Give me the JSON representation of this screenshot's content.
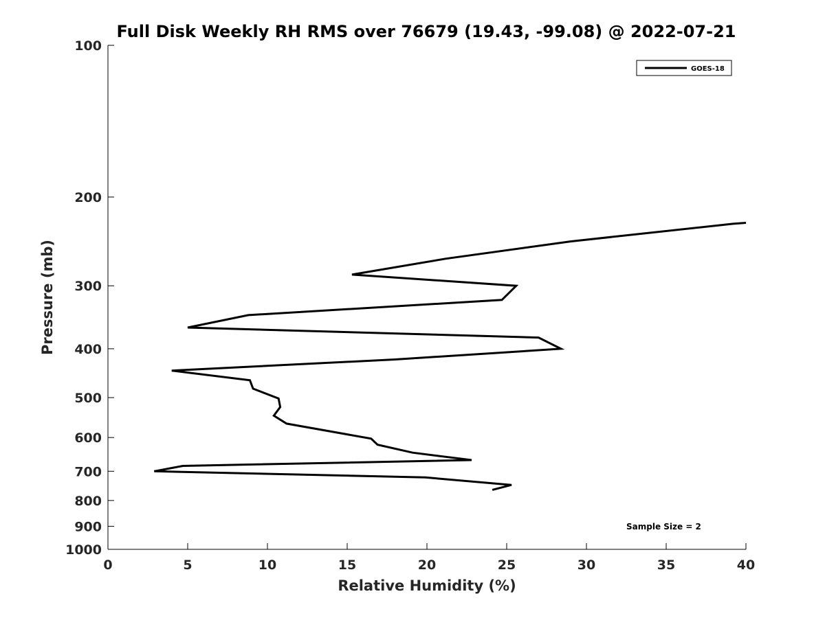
{
  "chart_data": {
    "type": "line",
    "title": "Full Disk Weekly RH RMS over 76679 (19.43, -99.08) @ 2022-07-21",
    "xlabel": "Relative Humidity (%)",
    "ylabel": "Pressure (mb)",
    "xlim": [
      0,
      40
    ],
    "ylim": [
      100,
      1000
    ],
    "yscale": "log",
    "yreversed": true,
    "grid": false,
    "legend_position": "top-right",
    "x_ticks": [
      0,
      5,
      10,
      15,
      20,
      25,
      30,
      35,
      40
    ],
    "y_ticks": [
      100,
      200,
      300,
      400,
      500,
      600,
      700,
      800,
      900,
      1000
    ],
    "annotation": "Sample Size = 2",
    "series": [
      {
        "name": "GOES-18",
        "color": "#000000",
        "points": [
          {
            "rh": 40.0,
            "p": 225
          },
          {
            "rh": 39.2,
            "p": 226
          },
          {
            "rh": 29.0,
            "p": 245
          },
          {
            "rh": 21.2,
            "p": 265
          },
          {
            "rh": 15.3,
            "p": 285
          },
          {
            "rh": 25.6,
            "p": 300
          },
          {
            "rh": 24.7,
            "p": 320
          },
          {
            "rh": 8.8,
            "p": 343
          },
          {
            "rh": 5.0,
            "p": 363
          },
          {
            "rh": 27.0,
            "p": 380
          },
          {
            "rh": 28.4,
            "p": 400
          },
          {
            "rh": 18.0,
            "p": 420
          },
          {
            "rh": 4.0,
            "p": 442
          },
          {
            "rh": 8.9,
            "p": 462
          },
          {
            "rh": 9.1,
            "p": 480
          },
          {
            "rh": 10.7,
            "p": 502
          },
          {
            "rh": 10.8,
            "p": 522
          },
          {
            "rh": 10.4,
            "p": 543
          },
          {
            "rh": 11.2,
            "p": 563
          },
          {
            "rh": 16.5,
            "p": 603
          },
          {
            "rh": 16.9,
            "p": 620
          },
          {
            "rh": 19.1,
            "p": 643
          },
          {
            "rh": 22.8,
            "p": 665
          },
          {
            "rh": 4.7,
            "p": 683
          },
          {
            "rh": 2.9,
            "p": 700
          },
          {
            "rh": 19.9,
            "p": 720
          },
          {
            "rh": 25.3,
            "p": 745
          },
          {
            "rh": 24.1,
            "p": 762
          }
        ]
      }
    ]
  }
}
